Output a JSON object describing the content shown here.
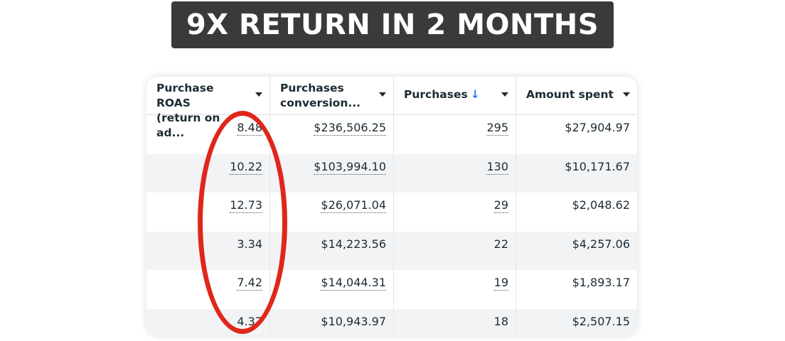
{
  "banner": {
    "text": "9X RETURN IN 2 MONTHS"
  },
  "table": {
    "headers": [
      {
        "line1": "Purchase ROAS",
        "line2": "(return on ad..."
      },
      {
        "line1": "Purchases",
        "line2": "conversion..."
      },
      {
        "line1": "Purchases",
        "line2": "",
        "sort_icon": "↓"
      },
      {
        "line1": "Amount spent",
        "line2": ""
      }
    ],
    "rows": [
      [
        "8.48",
        "$236,506.25",
        "295",
        "$27,904.97"
      ],
      [
        "10.22",
        "$103,994.10",
        "130",
        "$10,171.67"
      ],
      [
        "12.73",
        "$26,071.04",
        "29",
        "$2,048.62"
      ],
      [
        "3.34",
        "$14,223.56",
        "22",
        "$4,257.06"
      ],
      [
        "7.42",
        "$14,044.31",
        "19",
        "$1,893.17"
      ],
      [
        "4.37",
        "$10,943.97",
        "18",
        "$2,507.15"
      ]
    ]
  },
  "colors": {
    "highlight": "#e0261b",
    "banner_bg": "#3a3a3a",
    "sort_icon": "#1877f2",
    "row_alt": "#f2f3f5"
  }
}
